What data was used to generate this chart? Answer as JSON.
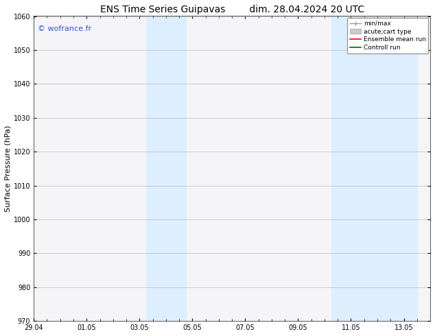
{
  "title_left": "ENS Time Series Guipavas",
  "title_right": "dim. 28.04.2024 20 UTC",
  "ylabel": "Surface Pressure (hPa)",
  "ylim": [
    970,
    1060
  ],
  "yticks": [
    970,
    980,
    990,
    1000,
    1010,
    1020,
    1030,
    1040,
    1050,
    1060
  ],
  "xlim_start": 0.0,
  "xlim_end": 15.0,
  "xtick_positions": [
    0,
    2,
    4,
    6,
    8,
    10,
    12,
    14
  ],
  "xtick_labels": [
    "29.04",
    "01.05",
    "03.05",
    "05.05",
    "07.05",
    "09.05",
    "11.05",
    "13.05"
  ],
  "minor_xtick_positions": [
    0.5,
    1.0,
    1.5,
    2.0,
    2.5,
    3.0,
    3.5,
    4.0,
    4.5,
    5.0,
    5.5,
    6.0,
    6.5,
    7.0,
    7.5,
    8.0,
    8.5,
    9.0,
    9.5,
    10.0,
    10.5,
    11.0,
    11.5,
    12.0,
    12.5,
    13.0,
    13.5,
    14.0,
    14.5
  ],
  "shaded_bands": [
    {
      "xmin": 4.25,
      "xmax": 5.75
    },
    {
      "xmin": 11.25,
      "xmax": 14.5
    }
  ],
  "shaded_color": "#ddeeff",
  "watermark": "© wofrance.fr",
  "watermark_color": "#3355cc",
  "background_color": "#ffffff",
  "plot_bg_color": "#f5f5f8",
  "grid_color": "#bbbbbb",
  "spine_color": "#666666",
  "title_fontsize": 10,
  "tick_fontsize": 7,
  "ylabel_fontsize": 8,
  "watermark_fontsize": 8
}
